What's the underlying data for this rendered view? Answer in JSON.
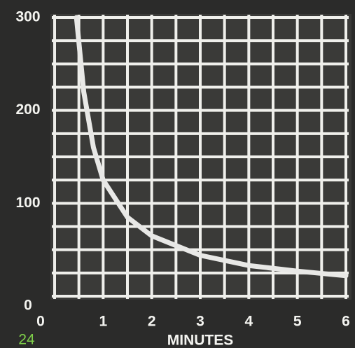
{
  "chart_data": {
    "type": "line",
    "xlabel": "MINUTES",
    "x": [
      0.45,
      0.6,
      0.8,
      1,
      1.5,
      2,
      3,
      4,
      5,
      6
    ],
    "series": [
      {
        "color": "#e8e8e6",
        "values": [
          300,
          220,
          160,
          125,
          85,
          65,
          44,
          33,
          27,
          22
        ]
      }
    ],
    "xlim": [
      0,
      6
    ],
    "xticks": [
      0,
      1,
      2,
      3,
      4,
      5,
      6
    ],
    "ylim": [
      0,
      300
    ],
    "yticks": [
      0,
      100,
      200,
      300
    ],
    "grid": true,
    "xgrid": [
      0,
      0.5,
      1,
      1.5,
      2,
      2.5,
      3,
      3.5,
      4,
      4.5,
      5,
      5.5,
      6
    ],
    "ygrid": [
      0,
      25,
      50,
      75,
      100,
      125,
      150,
      175,
      200,
      225,
      250,
      275,
      300
    ]
  },
  "page_number": "24"
}
